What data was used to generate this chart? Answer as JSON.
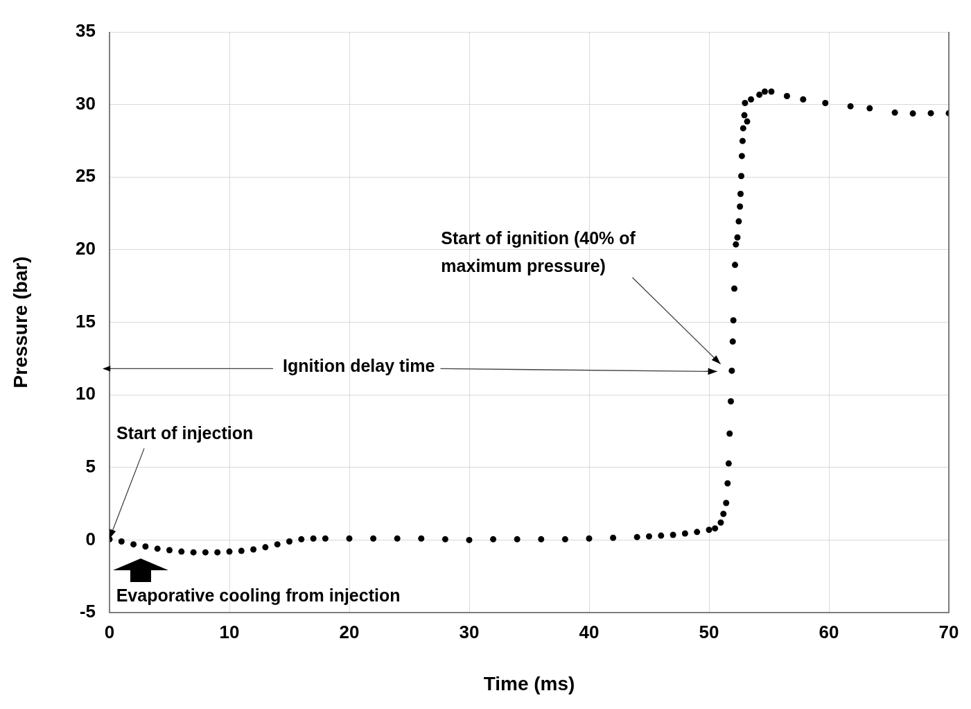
{
  "chart_data": {
    "type": "scatter",
    "xlabel": "Time (ms)",
    "ylabel": "Pressure (bar)",
    "xlim": [
      0,
      70
    ],
    "xticks": [
      0,
      10,
      20,
      30,
      40,
      50,
      60,
      70
    ],
    "ylim": [
      -5,
      35
    ],
    "yticks": [
      -5,
      0,
      5,
      10,
      15,
      20,
      25,
      30,
      35
    ],
    "grid": true,
    "legend": false,
    "marker": "circle",
    "series": [
      {
        "color": "#000000",
        "x": [
          0,
          1,
          2,
          3,
          4,
          5,
          6,
          7,
          8,
          9,
          10,
          11,
          12,
          13,
          14,
          15,
          16,
          17,
          18,
          20,
          22,
          24,
          26,
          28,
          30,
          32,
          34,
          36,
          38,
          40,
          42,
          44,
          45,
          46,
          47,
          48,
          49,
          50,
          50.5,
          50.98,
          51.2,
          51.43,
          51.55,
          51.64,
          51.72,
          51.82,
          51.9,
          51.98,
          52.03,
          52.11,
          52.17,
          52.24,
          52.37,
          52.48,
          52.58,
          52.63,
          52.69,
          52.74,
          52.8,
          52.85,
          52.95,
          53.0,
          53.18,
          53.5,
          54.2,
          54.65,
          55.2,
          56.5,
          57.85,
          59.7,
          61.8,
          63.4,
          65.5,
          67.0,
          68.5,
          70
        ],
        "values": [
          0.05,
          -0.1,
          -0.3,
          -0.45,
          -0.6,
          -0.7,
          -0.8,
          -0.85,
          -0.85,
          -0.85,
          -0.8,
          -0.75,
          -0.65,
          -0.5,
          -0.3,
          -0.1,
          0.05,
          0.1,
          0.1,
          0.1,
          0.1,
          0.1,
          0.1,
          0.05,
          0.0,
          0.05,
          0.05,
          0.05,
          0.05,
          0.1,
          0.15,
          0.2,
          0.25,
          0.3,
          0.35,
          0.45,
          0.55,
          0.7,
          0.8,
          1.2,
          1.8,
          2.55,
          3.9,
          5.27,
          7.33,
          9.55,
          11.66,
          13.67,
          15.13,
          17.32,
          18.95,
          20.36,
          20.84,
          21.95,
          22.97,
          23.84,
          25.07,
          26.45,
          27.49,
          28.36,
          29.26,
          30.1,
          28.83,
          30.35,
          30.67,
          30.89,
          30.89,
          30.58,
          30.35,
          30.1,
          29.88,
          29.74,
          29.44,
          29.38,
          29.4,
          29.4
        ]
      }
    ],
    "annotations": [
      {
        "text": "Start of injection",
        "x": 0,
        "y": 0
      },
      "Start of ignition (40% of maximum pressure)",
      "Ignition delay time",
      "Evaporative cooling from injection"
    ]
  }
}
